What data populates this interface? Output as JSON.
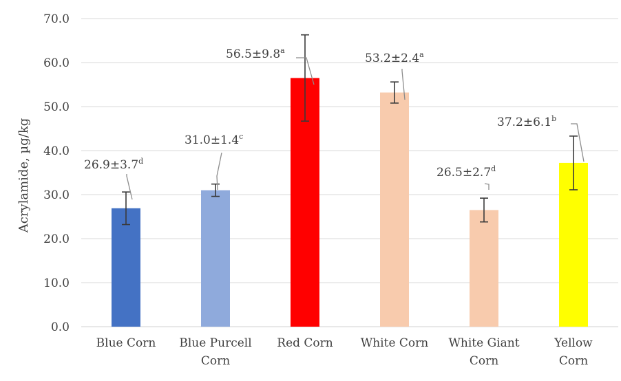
{
  "chart_data": {
    "type": "bar",
    "ylabel": "Acrylamide, µg/kg",
    "ylim": [
      0,
      70
    ],
    "yticks": [
      "0.0",
      "10.0",
      "20.0",
      "30.0",
      "40.0",
      "50.0",
      "60.0",
      "70.0"
    ],
    "grid": true,
    "categories": [
      [
        "Blue Corn"
      ],
      [
        "Blue Purcell",
        "Corn"
      ],
      [
        "Red Corn"
      ],
      [
        "White Corn"
      ],
      [
        "White Giant",
        "Corn"
      ],
      [
        "Yellow",
        "Corn"
      ]
    ],
    "values": [
      26.9,
      31.0,
      56.5,
      53.2,
      26.5,
      37.2
    ],
    "errors": [
      3.7,
      1.4,
      9.8,
      2.4,
      2.7,
      6.1
    ],
    "colors": [
      "#4472c4",
      "#8faadc",
      "#ff0000",
      "#f8cbad",
      "#f8cbad",
      "#ffff00"
    ],
    "data_labels": [
      {
        "text": "26.9±3.7",
        "sup": "d"
      },
      {
        "text": "31.0±1.4",
        "sup": "c"
      },
      {
        "text": "56.5±9.8",
        "sup": "a"
      },
      {
        "text": "53.2±2.4",
        "sup": "a"
      },
      {
        "text": "26.5±2.7",
        "sup": "d"
      },
      {
        "text": "37.2±6.1",
        "sup": "b"
      }
    ]
  }
}
